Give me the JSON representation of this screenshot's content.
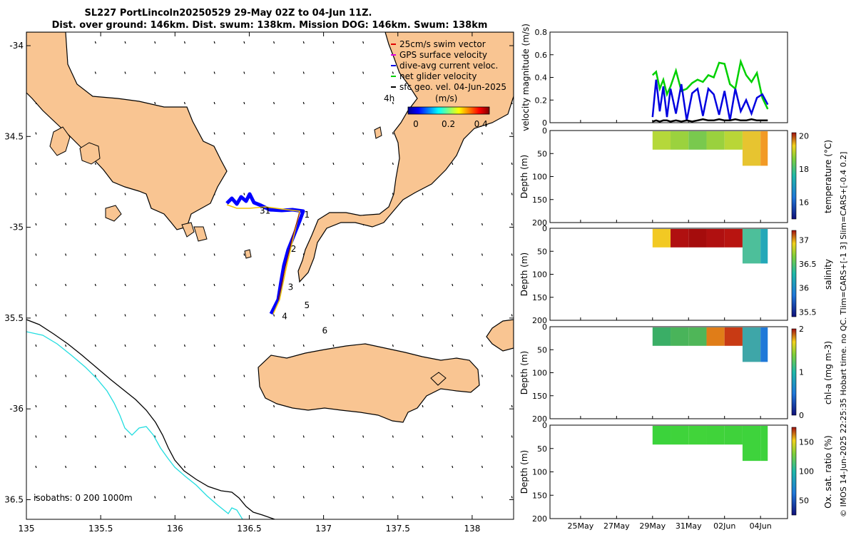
{
  "title": {
    "line1": "SL227 PortLincoln20250529 29-May 02Z to 04-Jun 11Z.",
    "line2": "Dist. over ground: 146km. Dist. swum: 138km. Mission DOG: 146km. Swum: 138km"
  },
  "map": {
    "lon_ticks": [
      "135",
      "135.5",
      "136",
      "136.5",
      "137",
      "137.5",
      "138"
    ],
    "lon_values": [
      135,
      135.5,
      136,
      136.5,
      137,
      137.5,
      138
    ],
    "lat_ticks": [
      "-34",
      "34.5",
      "-35",
      "35.5",
      "-36",
      "36.5"
    ],
    "lat_values": [
      -34,
      -34.5,
      -35,
      -35.5,
      -36,
      -36.5
    ],
    "isobaths_label": "isobaths: 0   200  1000m",
    "legend": [
      {
        "label": "25cm/s swim vector",
        "color": "#e00000"
      },
      {
        "label": "GPS surface velocity",
        "color": "#e000e0"
      },
      {
        "label": "dive-avg current veloc.",
        "color": "#0000e0"
      },
      {
        "label": "net glider velocity",
        "color": "#00d000"
      },
      {
        "label": "sfc geo. vel. 04-Jun-2025",
        "color": "#000000"
      }
    ],
    "colorbar": {
      "time_label": "4h",
      "unit_label": "(m/s)",
      "ticks": [
        "0",
        "0.2",
        "0.4"
      ],
      "tick_values": [
        0,
        0.2,
        0.4
      ],
      "range": [
        0,
        0.5
      ]
    },
    "day_markers": [
      {
        "label": "1",
        "lon": 136.87,
        "lat": -34.93
      },
      {
        "label": "2",
        "lon": 136.78,
        "lat": -35.12
      },
      {
        "label": "3",
        "lon": 136.76,
        "lat": -35.33
      },
      {
        "label": "4",
        "lon": 136.72,
        "lat": -35.49
      },
      {
        "label": "5",
        "lon": 136.87,
        "lat": -35.43
      },
      {
        "label": "6",
        "lon": 136.99,
        "lat": -35.57
      },
      {
        "label": "31",
        "lon": 136.57,
        "lat": -34.91
      }
    ],
    "colors": {
      "land": "#f9c592",
      "isobath_0": "#000000",
      "isobath_1000": "#22dde0",
      "track": "#0000ff"
    }
  },
  "panels": {
    "x_ticks": [
      "25May",
      "27May",
      "29May",
      "31May",
      "02Jun",
      "04Jun"
    ],
    "x_tick_days": [
      25,
      27,
      29,
      31,
      33,
      35
    ],
    "x_range_days": [
      23.3,
      36.5
    ],
    "velocity": {
      "ylabel": "velocity magnitude (m/s)",
      "y_ticks": [
        "0",
        "0.2",
        "0.4",
        "0.6",
        "0.8"
      ],
      "y_values": [
        0,
        0.2,
        0.4,
        0.6,
        0.8
      ]
    },
    "sections": [
      {
        "key": "temperature",
        "ylabel": "Depth (m)",
        "y_ticks": [
          "0",
          "50",
          "100",
          "150",
          "200"
        ],
        "cb_label": "temperature (°C)",
        "cb_ticks": [
          "16",
          "18",
          "20"
        ]
      },
      {
        "key": "salinity",
        "ylabel": "Depth (m)",
        "y_ticks": [
          "0",
          "50",
          "100",
          "150",
          "200"
        ],
        "cb_label": "salinity",
        "cb_ticks": [
          "35.5",
          "36",
          "36.5",
          "37"
        ]
      },
      {
        "key": "chla",
        "ylabel": "Depth (m)",
        "y_ticks": [
          "0",
          "50",
          "100",
          "150",
          "200"
        ],
        "cb_label": "chl-a (mg m-3)",
        "cb_ticks": [
          "0",
          "1",
          "2"
        ]
      },
      {
        "key": "oxsat",
        "ylabel": "Depth (m)",
        "y_ticks": [
          "0",
          "50",
          "100",
          "150",
          "200"
        ],
        "cb_label": "Ox. sat. ratio (%)",
        "cb_ticks": [
          "50",
          "100",
          "150"
        ]
      }
    ]
  },
  "chart_data": [
    {
      "type": "line",
      "title": "velocity magnitude",
      "xlabel": "",
      "ylabel": "velocity magnitude (m/s)",
      "ylim": [
        0,
        0.8
      ],
      "x": [
        29.0,
        29.2,
        29.4,
        29.6,
        29.8,
        30.0,
        30.3,
        30.6,
        30.9,
        31.2,
        31.5,
        31.8,
        32.1,
        32.4,
        32.7,
        33.0,
        33.3,
        33.6,
        33.9,
        34.2,
        34.5,
        34.8,
        35.1,
        35.4
      ],
      "series": [
        {
          "name": "net glider velocity",
          "color": "#00d000",
          "values": [
            0.42,
            0.45,
            0.3,
            0.38,
            0.25,
            0.32,
            0.46,
            0.28,
            0.3,
            0.35,
            0.38,
            0.36,
            0.42,
            0.4,
            0.53,
            0.52,
            0.34,
            0.3,
            0.54,
            0.42,
            0.36,
            0.44,
            0.22,
            0.12
          ]
        },
        {
          "name": "dive-avg current veloc.",
          "color": "#0000e0",
          "values": [
            0.05,
            0.38,
            0.1,
            0.32,
            0.05,
            0.3,
            0.08,
            0.34,
            0.02,
            0.26,
            0.3,
            0.06,
            0.3,
            0.25,
            0.07,
            0.28,
            0.02,
            0.3,
            0.1,
            0.2,
            0.08,
            0.22,
            0.25,
            0.16
          ]
        },
        {
          "name": "sfc geo. vel.",
          "color": "#000000",
          "values": [
            0.01,
            0.02,
            0.01,
            0.02,
            0.02,
            0.01,
            0.02,
            0.01,
            0.02,
            0.01,
            0.02,
            0.03,
            0.02,
            0.02,
            0.03,
            0.02,
            0.02,
            0.03,
            0.02,
            0.02,
            0.03,
            0.02,
            0.02,
            0.02
          ]
        }
      ]
    },
    {
      "type": "heatmap",
      "title": "temperature",
      "ylabel": "Depth (m)",
      "ylim": [
        200,
        0
      ],
      "x_days": [
        29,
        30,
        31,
        32,
        33,
        34,
        35
      ],
      "depth_max_m": [
        40,
        40,
        40,
        40,
        40,
        75,
        75
      ],
      "values_surface": [
        18.5,
        18.3,
        18.0,
        18.2,
        18.4,
        19.0,
        19.5
      ],
      "cb_range": [
        15,
        20.2
      ],
      "cb_label": "temperature (°C)"
    },
    {
      "type": "heatmap",
      "title": "salinity",
      "ylabel": "Depth (m)",
      "ylim": [
        200,
        0
      ],
      "x_days": [
        29,
        30,
        31,
        32,
        33,
        34,
        35
      ],
      "depth_max_m": [
        40,
        40,
        40,
        40,
        40,
        75,
        75
      ],
      "values_surface": [
        37.0,
        37.2,
        37.2,
        37.2,
        37.1,
        36.4,
        36.2
      ],
      "cb_range": [
        35.4,
        37.2
      ],
      "cb_label": "salinity"
    },
    {
      "type": "heatmap",
      "title": "chl-a",
      "ylabel": "Depth (m)",
      "ylim": [
        200,
        0
      ],
      "x_days": [
        29,
        30,
        31,
        32,
        33,
        34,
        35
      ],
      "depth_max_m": [
        40,
        40,
        40,
        40,
        40,
        75,
        75
      ],
      "values_surface": [
        1.3,
        1.4,
        1.5,
        1.4,
        1.8,
        1.2,
        0.8
      ],
      "cb_range": [
        0,
        2
      ],
      "cb_label": "chl-a (mg m-3)"
    },
    {
      "type": "heatmap",
      "title": "Ox. sat. ratio",
      "ylabel": "Depth (m)",
      "ylim": [
        200,
        0
      ],
      "x_days": [
        29,
        30,
        31,
        32,
        33,
        34,
        35
      ],
      "depth_max_m": [
        40,
        40,
        40,
        40,
        40,
        75,
        75
      ],
      "values_surface": [
        108,
        108,
        110,
        108,
        108,
        107,
        107
      ],
      "cb_range": [
        25,
        175
      ],
      "cb_label": "Ox. sat. ratio (%)"
    }
  ],
  "footer": "© IMOS 14-Jun-2025 22:25:35 Hobart time. no QC. Tlim=CARS+[-1 3] Slim=CARS+[-0.4 0.2]"
}
